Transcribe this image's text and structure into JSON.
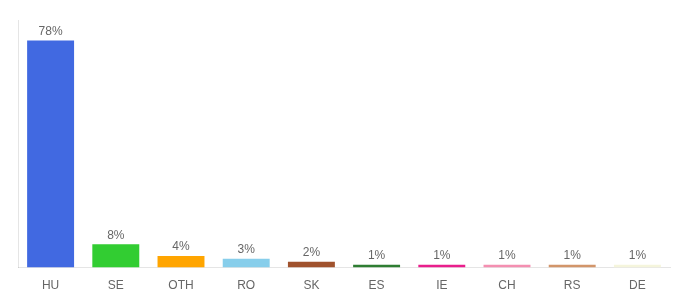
{
  "chart_data": {
    "type": "bar",
    "categories": [
      "HU",
      "SE",
      "OTH",
      "RO",
      "SK",
      "ES",
      "IE",
      "CH",
      "RS",
      "DE"
    ],
    "values": [
      78,
      8,
      4,
      3,
      2,
      1,
      1,
      1,
      1,
      1
    ],
    "value_labels": [
      "78%",
      "8%",
      "4%",
      "3%",
      "2%",
      "1%",
      "1%",
      "1%",
      "1%",
      "1%"
    ],
    "colors": [
      "#4169e1",
      "#32cd32",
      "#ffa500",
      "#87ceeb",
      "#a0522d",
      "#2e7d32",
      "#e91e8c",
      "#f48fb1",
      "#d2956a",
      "#f5f5dc"
    ],
    "ylim": [
      0,
      85
    ],
    "data_labels": true,
    "tick_labels": "x",
    "grid": false
  }
}
